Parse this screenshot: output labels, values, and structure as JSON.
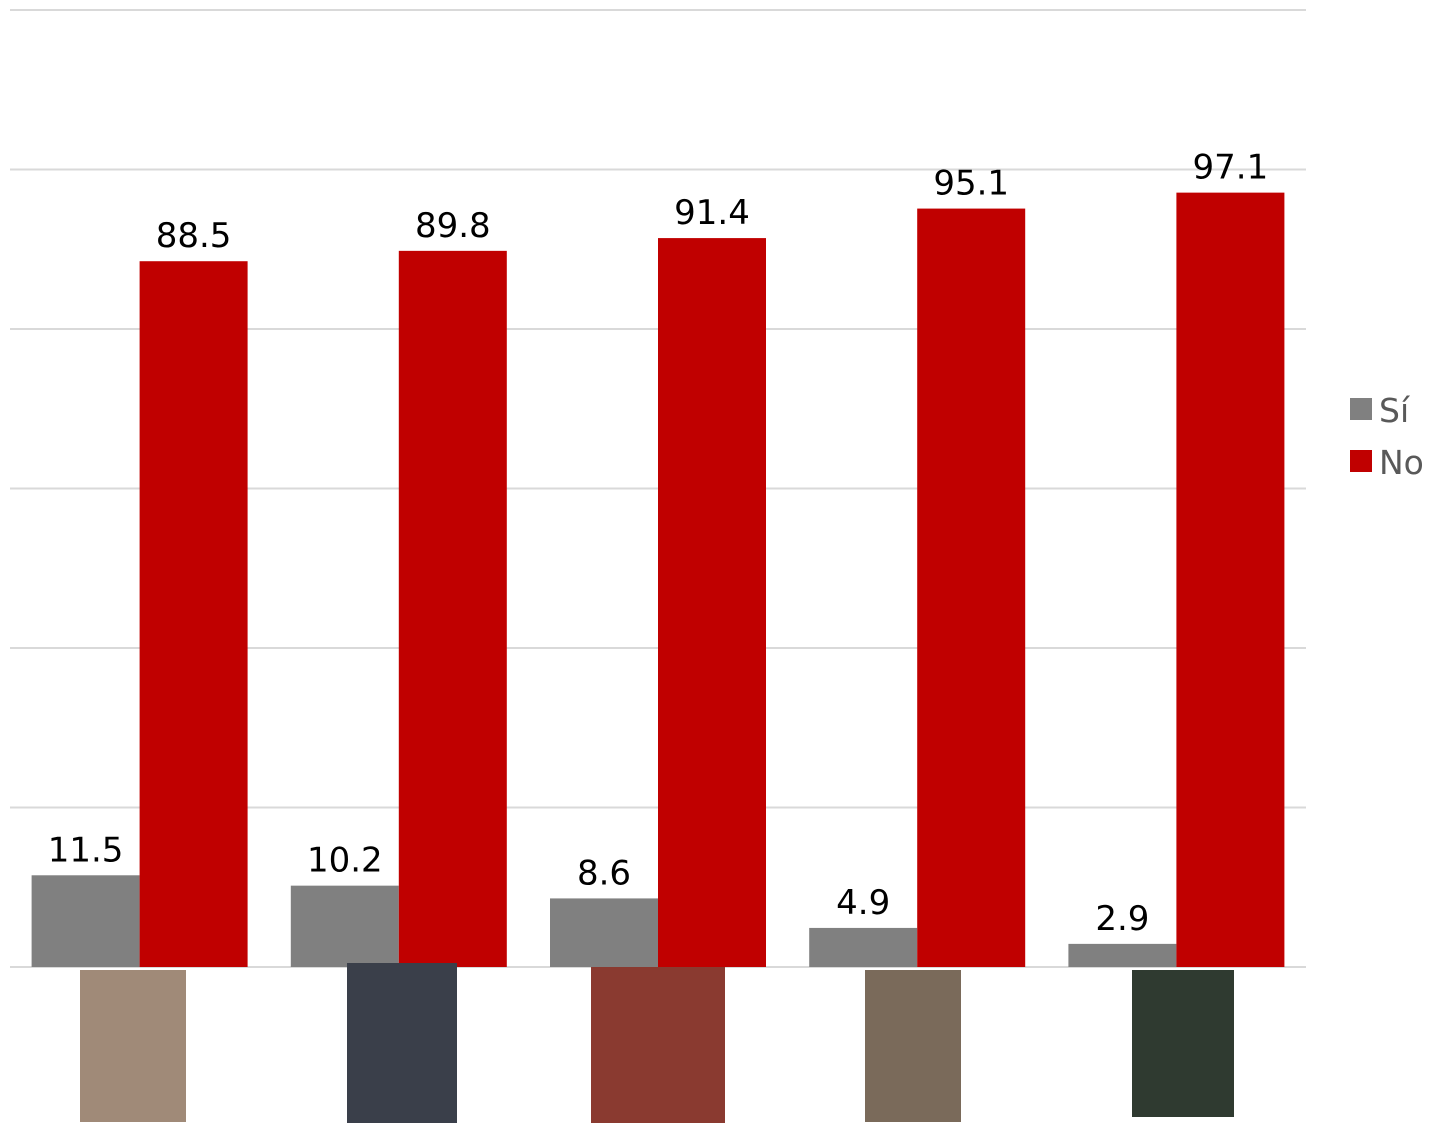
{
  "chart_data": {
    "type": "bar",
    "categories": [
      null,
      null,
      null,
      null,
      null
    ],
    "series": [
      {
        "name": "Sí",
        "color": "#808080",
        "values": [
          11.5,
          10.2,
          8.6,
          4.9,
          2.9
        ]
      },
      {
        "name": "No",
        "color": "#c00000",
        "values": [
          88.5,
          89.8,
          91.4,
          95.1,
          97.1
        ]
      }
    ],
    "ylim": [
      0,
      120
    ],
    "yticks": [
      0,
      20,
      40,
      60,
      80,
      100,
      120
    ],
    "grid": true,
    "legend": "right"
  }
}
